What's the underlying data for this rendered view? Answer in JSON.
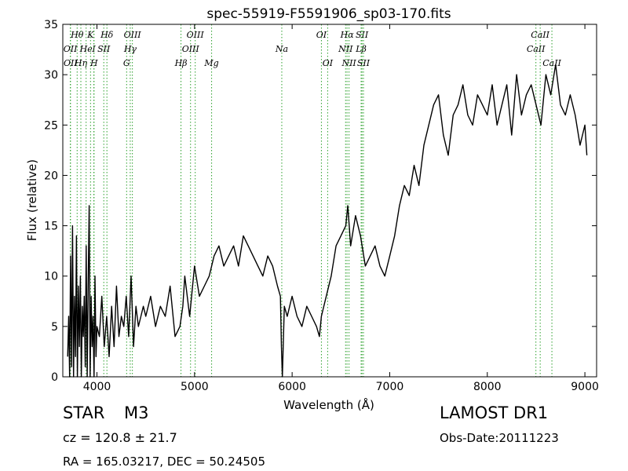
{
  "chart_data": {
    "type": "line",
    "title": "spec-55919-F5591906_sp03-170.fits",
    "xlabel": "Wavelength (Å)",
    "ylabel": "Flux (relative)",
    "xlim": [
      3650,
      9120
    ],
    "ylim": [
      0,
      35
    ],
    "xticks": [
      "4000",
      "5000",
      "6000",
      "7000",
      "8000",
      "9000"
    ],
    "yticks": [
      "0",
      "5",
      "10",
      "15",
      "20",
      "25",
      "30",
      "35"
    ],
    "line_color": "#000000",
    "marker_color": "#2ca02c",
    "series": [
      {
        "x": [
          3700,
          3710,
          3720,
          3730,
          3740,
          3750,
          3760,
          3770,
          3780,
          3790,
          3800,
          3810,
          3820,
          3830,
          3840,
          3850,
          3860,
          3870,
          3880,
          3890,
          3900,
          3910,
          3920,
          3930,
          3940,
          3950,
          3960,
          3970,
          3980,
          3990,
          4000,
          4025,
          4050,
          4075,
          4100,
          4125,
          4150,
          4175,
          4200,
          4225,
          4250,
          4275,
          4300,
          4325,
          4350,
          4375,
          4400,
          4425,
          4450,
          4475,
          4500,
          4550,
          4600,
          4650,
          4700,
          4750,
          4800,
          4850,
          4880,
          4900,
          4950,
          5000,
          5050,
          5100,
          5150,
          5200,
          5250,
          5300,
          5350,
          5400,
          5450,
          5500,
          5550,
          5600,
          5650,
          5700,
          5750,
          5800,
          5850,
          5880,
          5890,
          5900,
          5920,
          5950,
          6000,
          6050,
          6100,
          6150,
          6200,
          6250,
          6280,
          6300,
          6350,
          6400,
          6450,
          6500,
          6550,
          6570,
          6600,
          6650,
          6700,
          6750,
          6800,
          6850,
          6900,
          6950,
          7000,
          7050,
          7100,
          7150,
          7200,
          7250,
          7300,
          7350,
          7400,
          7450,
          7500,
          7550,
          7600,
          7650,
          7700,
          7750,
          7800,
          7850,
          7900,
          7950,
          8000,
          8050,
          8100,
          8150,
          8200,
          8250,
          8300,
          8350,
          8400,
          8450,
          8500,
          8550,
          8600,
          8650,
          8700,
          8750,
          8800,
          8850,
          8900,
          8950,
          9000,
          9020
        ],
        "y": [
          2,
          6,
          0,
          12,
          1,
          15,
          0,
          8,
          2,
          14,
          0,
          9,
          3,
          10,
          0,
          7,
          4,
          8,
          1,
          13,
          0,
          9,
          17,
          0,
          8,
          3,
          6,
          0,
          10,
          2,
          5,
          4,
          8,
          3,
          6,
          2,
          7,
          3,
          9,
          4,
          6,
          5,
          8,
          4,
          10,
          3,
          7,
          5,
          6,
          7,
          6,
          8,
          5,
          7,
          6,
          9,
          4,
          5,
          7,
          10,
          6,
          11,
          8,
          9,
          10,
          12,
          13,
          11,
          12,
          13,
          11,
          14,
          13,
          12,
          11,
          10,
          12,
          11,
          9,
          8,
          3,
          0,
          7,
          6,
          8,
          6,
          5,
          7,
          6,
          5,
          4,
          6,
          8,
          10,
          13,
          14,
          15,
          17,
          13,
          16,
          14,
          11,
          12,
          13,
          11,
          10,
          12,
          14,
          17,
          19,
          18,
          21,
          19,
          23,
          25,
          27,
          28,
          24,
          22,
          26,
          27,
          29,
          26,
          25,
          28,
          27,
          26,
          29,
          25,
          27,
          29,
          24,
          30,
          26,
          28,
          29,
          27,
          25,
          30,
          28,
          31,
          27,
          26,
          28,
          26,
          23,
          25,
          22
        ]
      }
    ],
    "lines": [
      {
        "label": "OII",
        "wl": 3727,
        "row": 1
      },
      {
        "label": "OII",
        "wl": 3729,
        "row": 2
      },
      {
        "label": "Hθ",
        "wl": 3797,
        "row": 0
      },
      {
        "label": "Hη",
        "wl": 3835,
        "row": 2
      },
      {
        "label": "He",
        "wl": 3889,
        "row": 1
      },
      {
        "label": "K",
        "wl": 3934,
        "row": 0
      },
      {
        "label": "I",
        "wl": 3968,
        "row": 1
      },
      {
        "label": "H",
        "wl": 3970,
        "row": 2
      },
      {
        "label": "SII",
        "wl": 4070,
        "row": 1
      },
      {
        "label": "Hδ",
        "wl": 4102,
        "row": 0
      },
      {
        "label": "G",
        "wl": 4304,
        "row": 2
      },
      {
        "label": "Hγ",
        "wl": 4341,
        "row": 1
      },
      {
        "label": "OIII",
        "wl": 4363,
        "row": 0
      },
      {
        "label": "Hβ",
        "wl": 4861,
        "row": 2
      },
      {
        "label": "OIII",
        "wl": 4959,
        "row": 1
      },
      {
        "label": "OIII",
        "wl": 5007,
        "row": 0
      },
      {
        "label": "Mg",
        "wl": 5175,
        "row": 2
      },
      {
        "label": "Na",
        "wl": 5894,
        "row": 1
      },
      {
        "label": "OI",
        "wl": 6300,
        "row": 0
      },
      {
        "label": "OI",
        "wl": 6364,
        "row": 2
      },
      {
        "label": "NII",
        "wl": 6548,
        "row": 1
      },
      {
        "label": "Hα",
        "wl": 6563,
        "row": 0
      },
      {
        "label": "NII",
        "wl": 6583,
        "row": 2
      },
      {
        "label": "Lβ",
        "wl": 6707,
        "row": 1
      },
      {
        "label": "SII",
        "wl": 6716,
        "row": 0
      },
      {
        "label": "SII",
        "wl": 6731,
        "row": 2
      },
      {
        "label": "CaII",
        "wl": 8498,
        "row": 1
      },
      {
        "label": "CaII",
        "wl": 8542,
        "row": 0
      },
      {
        "label": "CaII",
        "wl": 8662,
        "row": 2
      }
    ]
  },
  "info": {
    "object_class": "STAR",
    "object_subclass": "M3",
    "redshift": "cz = 120.8  ± 21.7",
    "coords": "RA = 165.03217, DEC = 50.24505",
    "survey": "LAMOST DR1",
    "obs_date": "Obs-Date:20111223"
  }
}
